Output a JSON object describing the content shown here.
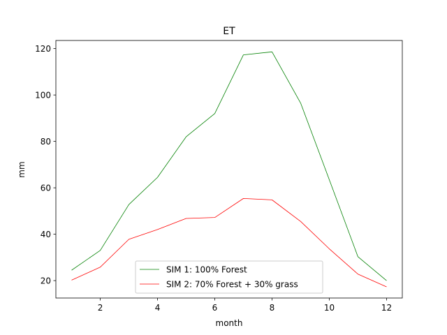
{
  "chart_data": {
    "type": "line",
    "title": "ET",
    "xlabel": "month",
    "ylabel": "mm",
    "xlim": [
      0.45,
      12.55
    ],
    "ylim": [
      12.5,
      123.5
    ],
    "xticks": [
      2,
      4,
      6,
      8,
      10,
      12
    ],
    "yticks": [
      20,
      40,
      60,
      80,
      100,
      120
    ],
    "grid": false,
    "legend_position": "lower-center",
    "x": [
      1,
      2,
      3,
      4,
      5,
      6,
      7,
      8,
      9,
      10,
      11,
      12
    ],
    "series": [
      {
        "name": "SIM 1: 100% Forest",
        "color": "#008000",
        "values": [
          24.5,
          33.0,
          52.8,
          64.5,
          82.0,
          92.0,
          117.3,
          118.6,
          96.5,
          63.5,
          30.3,
          20.0
        ]
      },
      {
        "name": "SIM 2: 70% Forest + 30% grass",
        "color": "#ff0000",
        "values": [
          20.2,
          25.8,
          37.8,
          42.0,
          46.8,
          47.2,
          55.4,
          54.8,
          45.5,
          33.7,
          22.8,
          17.3
        ]
      }
    ]
  }
}
